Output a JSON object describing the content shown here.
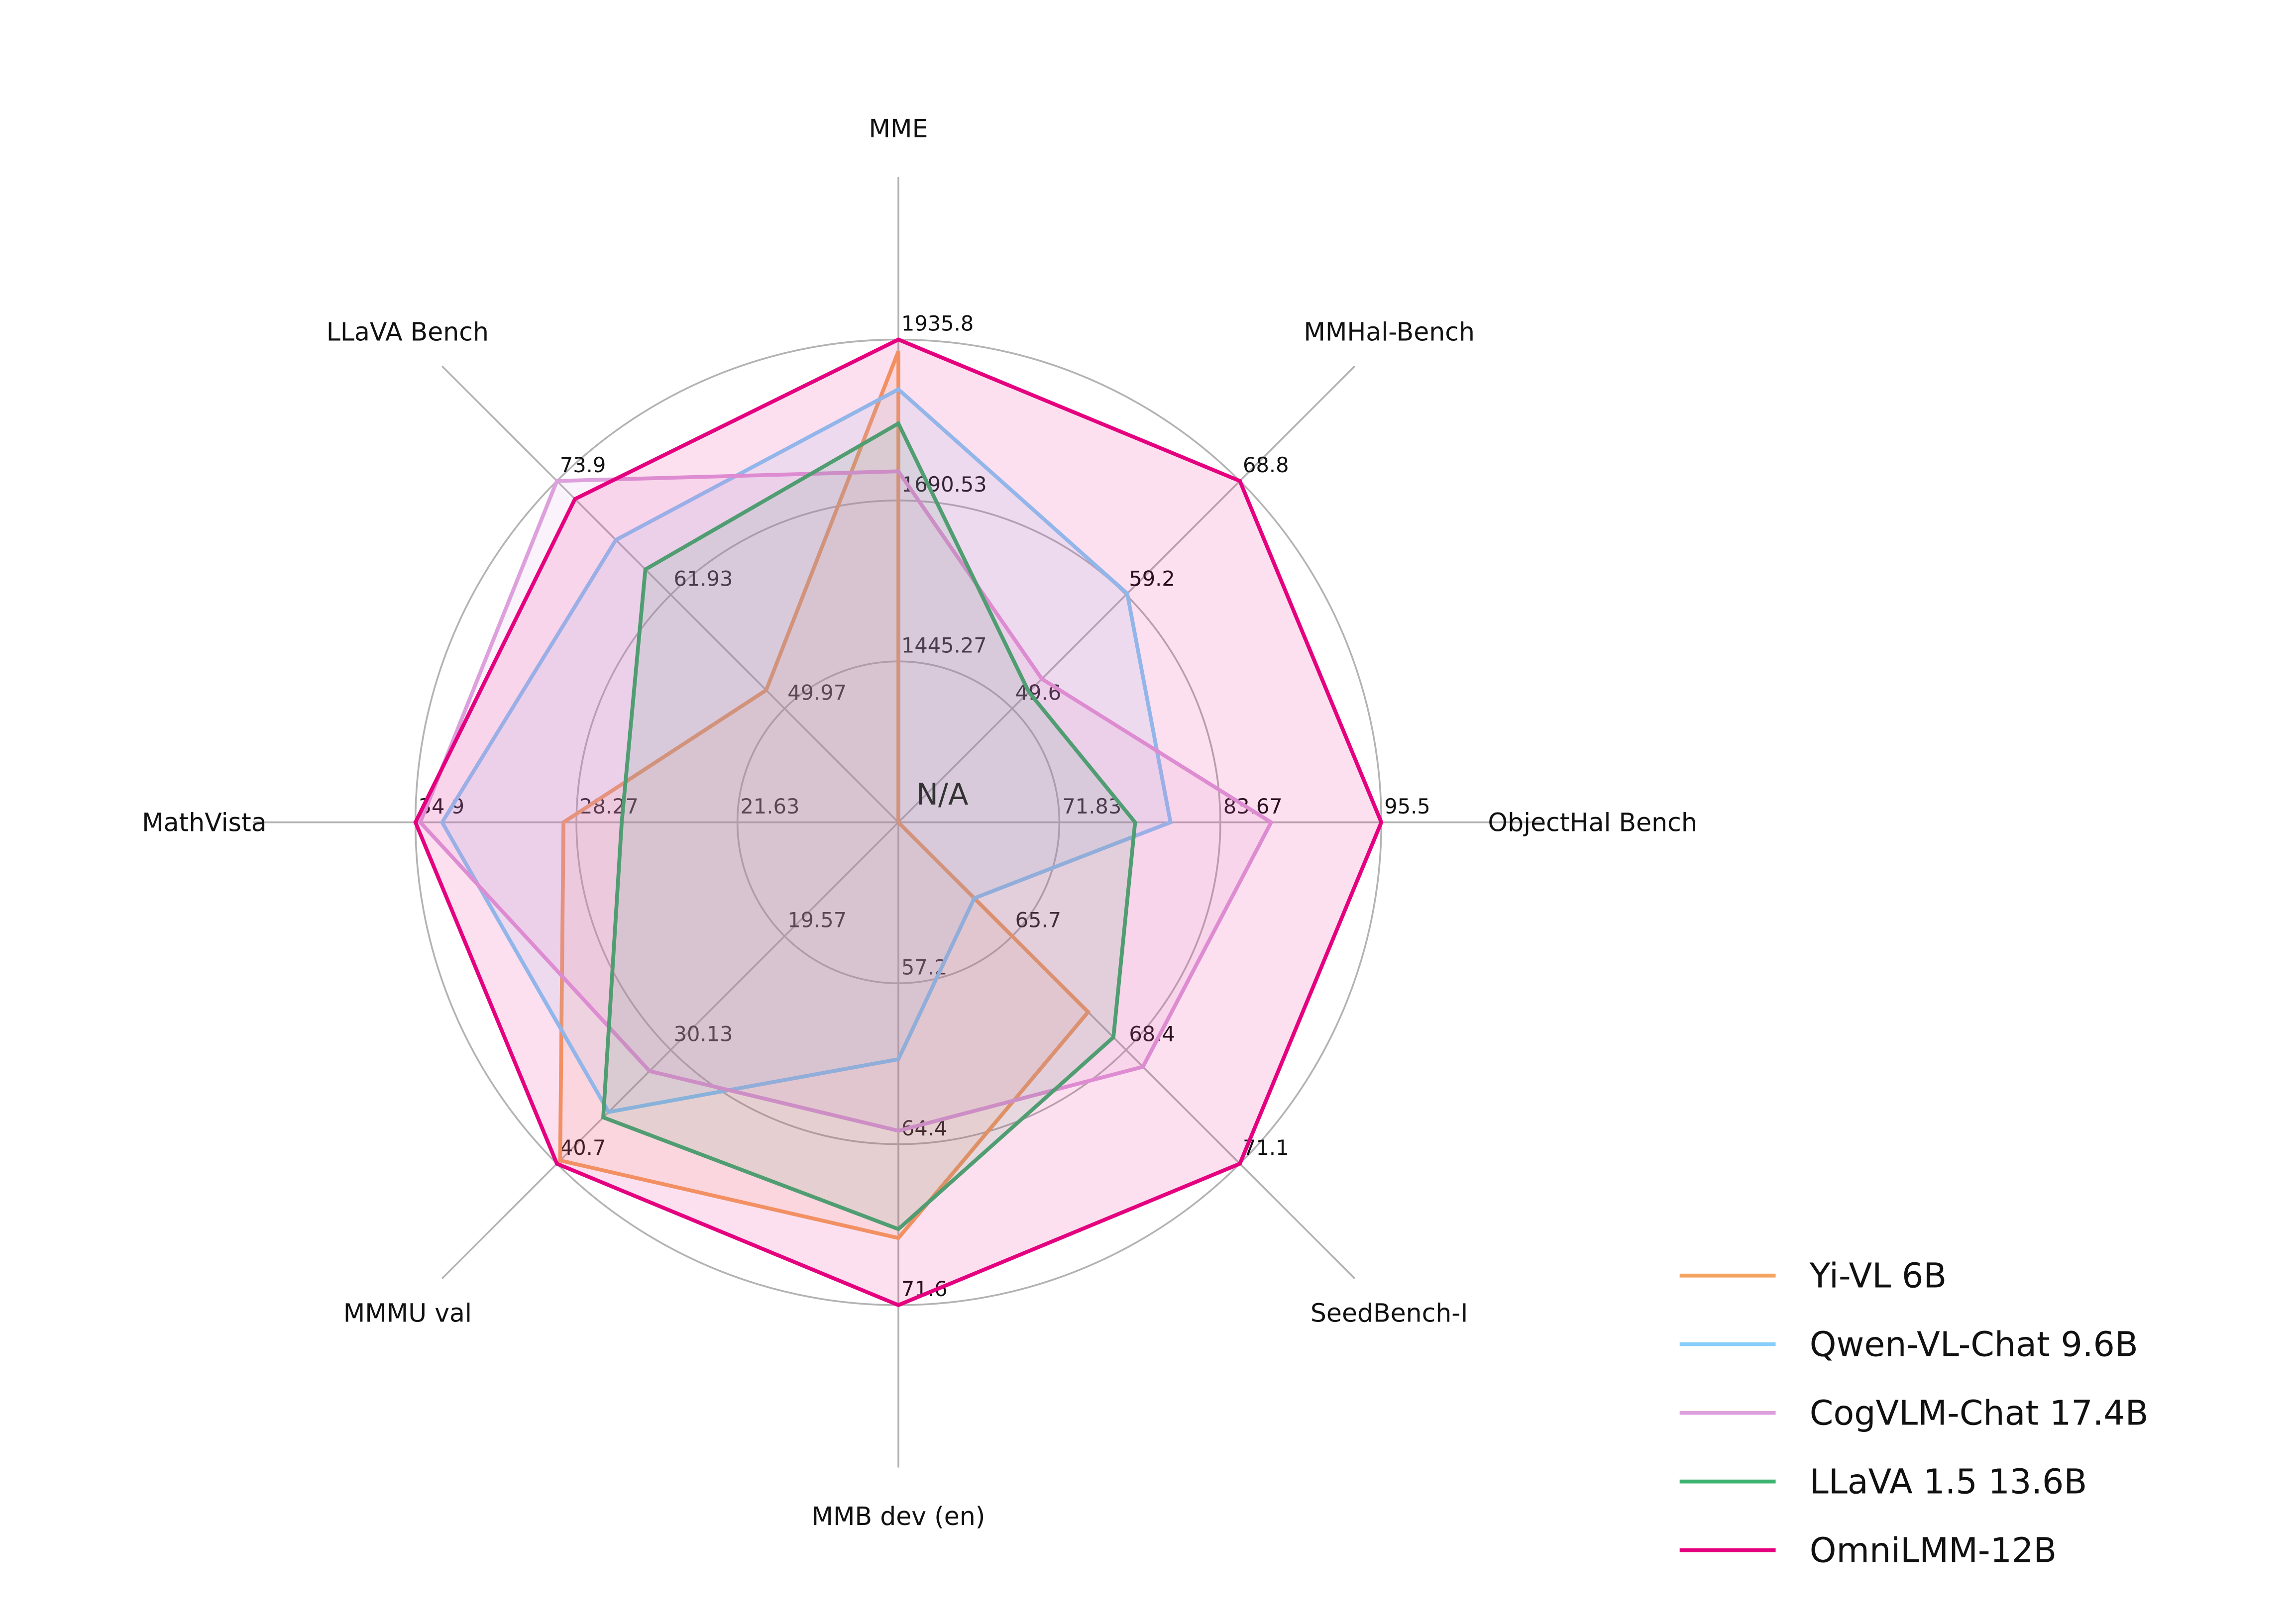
{
  "chart_data": {
    "type": "radar",
    "axes": [
      "MME",
      "MMHal-Bench",
      "ObjectHal Bench",
      "SeedBench-I",
      "MMB dev (en)",
      "MMMU val",
      "MathVista",
      "LLaVA Bench"
    ],
    "axis_ranges": [
      {
        "min": 1200,
        "ticks": [
          "1445.27",
          "1690.53",
          "1935.8"
        ],
        "max": 1935.8
      },
      {
        "min": 40,
        "ticks": [
          "49.6",
          "59.2",
          "68.8"
        ],
        "max": 68.8
      },
      {
        "min": 60,
        "ticks": [
          "71.83",
          "83.67",
          "95.5"
        ],
        "max": 95.5
      },
      {
        "min": 63,
        "ticks": [
          "65.7",
          "68.4",
          "71.1"
        ],
        "max": 71.1
      },
      {
        "min": 50,
        "ticks": [
          "57.2",
          "64.4",
          "71.6"
        ],
        "max": 71.6
      },
      {
        "min": 9,
        "ticks": [
          "19.57",
          "30.13",
          "40.7"
        ],
        "max": 40.7
      },
      {
        "min": 15,
        "ticks": [
          "21.63",
          "28.27",
          "34.9"
        ],
        "max": 34.9
      },
      {
        "min": 38,
        "ticks": [
          "49.97",
          "61.93",
          "73.9"
        ],
        "max": 73.9
      }
    ],
    "annotation": "N/A",
    "series": [
      {
        "name": "Yi-VL 6B",
        "color": "#f4a460",
        "values": [
          1918,
          null,
          null,
          67.5,
          68.6,
          40.4,
          28.8,
          51.9
        ]
      },
      {
        "name": "Qwen-VL-Chat 9.6B",
        "color": "#87cefa",
        "values": [
          1860,
          59.3,
          80.0,
          64.8,
          60.6,
          35.9,
          33.8,
          67.7
        ]
      },
      {
        "name": "CogVLM-Chat 17.4B",
        "color": "#dda0dd",
        "values": [
          1735,
          52.1,
          87.4,
          68.8,
          63.8,
          32.1,
          34.7,
          73.9
        ]
      },
      {
        "name": "LLaVA 1.5 13.6B",
        "color": "#3cb371",
        "values": [
          1808,
          51.0,
          77.4,
          68.1,
          68.2,
          36.4,
          26.4,
          64.6
        ]
      },
      {
        "name": "OmniLMM-12B",
        "color": "#e4007f",
        "values": [
          1935.8,
          68.8,
          95.5,
          71.1,
          71.6,
          40.7,
          34.9,
          72.0
        ]
      }
    ],
    "legend": "bottom-right",
    "grid": true
  }
}
